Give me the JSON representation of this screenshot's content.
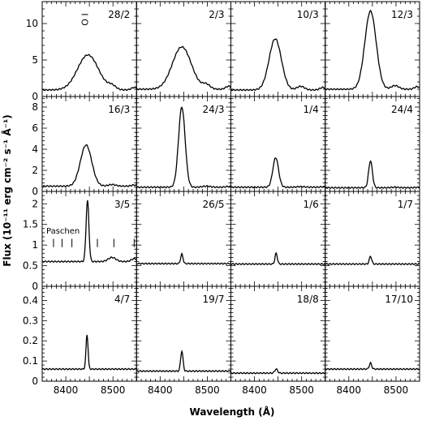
{
  "figure": {
    "ylabel": "Flux (10⁻¹¹ erg cm⁻² s⁻¹ Å⁻¹)",
    "xlabel": "Wavelength (Å)",
    "x_ticks": [
      "8400",
      "8500"
    ]
  },
  "chart_data": {
    "type": "line",
    "grid": "4x4 small multiples, shared x axis per column, shared y axis per row",
    "xlabel": "Wavelength (Å)",
    "ylabel": "Flux (10⁻¹¹ erg cm⁻² s⁻¹ Å⁻¹)",
    "xlim": [
      8350,
      8550
    ],
    "x_ticks": [
      8400,
      8500
    ],
    "rows": [
      {
        "ylim": [
          0,
          13
        ],
        "y_ticks": [
          0,
          5,
          10
        ]
      },
      {
        "ylim": [
          0,
          9
        ],
        "y_ticks": [
          0,
          2,
          4,
          6,
          8
        ]
      },
      {
        "ylim": [
          0,
          2.3
        ],
        "y_ticks": [
          0,
          0.5,
          1,
          1.5,
          2
        ]
      },
      {
        "ylim": [
          0,
          0.47
        ],
        "y_ticks": [
          0,
          0.1,
          0.2,
          0.3,
          0.4
        ]
      }
    ],
    "panels": [
      {
        "label": "28/2",
        "continuum": 0.9,
        "peak": 5.7,
        "width": 22,
        "center": 8447,
        "secondary": 0.5,
        "annotation": "O I"
      },
      {
        "label": "2/3",
        "continuum": 1.0,
        "peak": 6.8,
        "width": 20,
        "center": 8446,
        "secondary": 0.6
      },
      {
        "label": "10/3",
        "continuum": 0.9,
        "peak": 7.9,
        "width": 13,
        "center": 8444,
        "secondary": 0.5
      },
      {
        "label": "12/3",
        "continuum": 1.0,
        "peak": 11.7,
        "width": 12,
        "center": 8446,
        "secondary": 0.5
      },
      {
        "label": "16/3",
        "continuum": 0.5,
        "peak": 4.4,
        "width": 12,
        "center": 8443,
        "secondary": 0.15
      },
      {
        "label": "24/3",
        "continuum": 0.4,
        "peak": 8.0,
        "width": 7,
        "center": 8446,
        "secondary": 0.1
      },
      {
        "label": "1/4",
        "continuum": 0.4,
        "peak": 3.2,
        "width": 6,
        "center": 8445,
        "secondary": 0.05
      },
      {
        "label": "24/4",
        "continuum": 0.35,
        "peak": 2.9,
        "width": 4,
        "center": 8446,
        "secondary": 0.05
      },
      {
        "label": "3/5",
        "continuum": 0.6,
        "peak": 2.08,
        "width": 3,
        "center": 8446,
        "secondary": 0.1,
        "annotation": "Paschen",
        "paschen_lines": [
          8374,
          8392,
          8413,
          8467,
          8502,
          8545
        ]
      },
      {
        "label": "26/5",
        "continuum": 0.55,
        "peak": 0.78,
        "width": 2.5,
        "center": 8446,
        "secondary": 0.0
      },
      {
        "label": "1/6",
        "continuum": 0.54,
        "peak": 0.8,
        "width": 2.5,
        "center": 8446,
        "secondary": 0.0
      },
      {
        "label": "1/7",
        "continuum": 0.54,
        "peak": 0.73,
        "width": 2.5,
        "center": 8446,
        "secondary": 0.0
      },
      {
        "label": "4/7",
        "continuum": 0.06,
        "peak": 0.23,
        "width": 2.2,
        "center": 8445,
        "secondary": 0.0
      },
      {
        "label": "19/7",
        "continuum": 0.05,
        "peak": 0.15,
        "width": 2.5,
        "center": 8446,
        "secondary": 0.0
      },
      {
        "label": "18/8",
        "continuum": 0.04,
        "peak": 0.06,
        "width": 3,
        "center": 8446,
        "secondary": 0.0
      },
      {
        "label": "17/10",
        "continuum": 0.06,
        "peak": 0.09,
        "width": 2.5,
        "center": 8446,
        "secondary": 0.0
      }
    ]
  }
}
